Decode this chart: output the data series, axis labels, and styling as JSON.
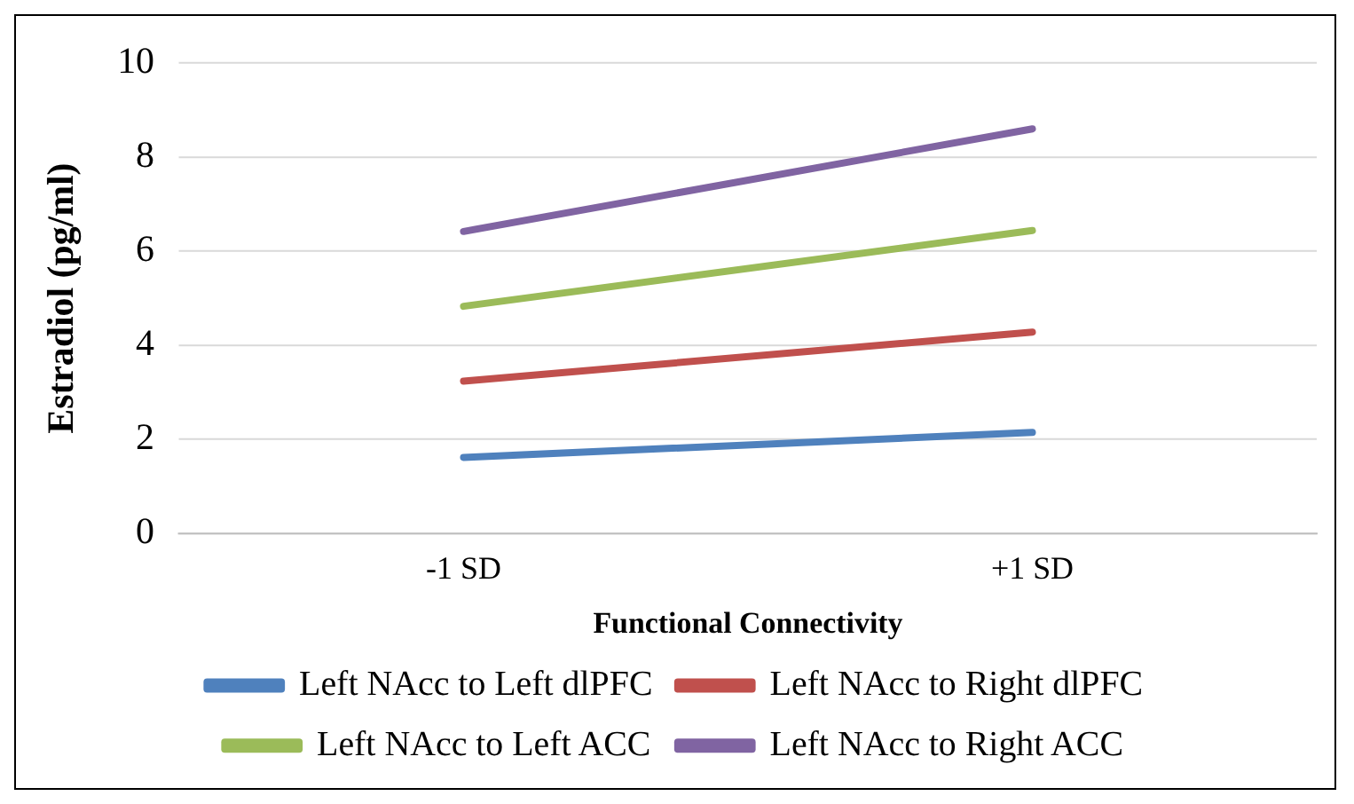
{
  "chart_data": {
    "type": "line",
    "xlabel": "Functional Connectivity",
    "ylabel": "Estradiol (pg/ml)",
    "categories": [
      "-1 SD",
      "+1 SD"
    ],
    "ylim": [
      0,
      10
    ],
    "yticks": [
      0,
      2,
      4,
      6,
      8,
      10
    ],
    "grid": "y",
    "legend": "bottom",
    "marker": "none",
    "series": [
      {
        "name": "Left NAcc to Left dlPFC",
        "color": "#4f81bd",
        "values": [
          1.62,
          2.15
        ]
      },
      {
        "name": "Left NAcc to Right dlPFC",
        "color": "#c0504d",
        "values": [
          3.24,
          4.28
        ]
      },
      {
        "name": "Left NAcc to Left ACC",
        "color": "#9bbb59",
        "values": [
          4.83,
          6.44
        ]
      },
      {
        "name": "Left NAcc to Right ACC",
        "color": "#8064a2",
        "values": [
          6.42,
          8.6
        ]
      }
    ]
  }
}
